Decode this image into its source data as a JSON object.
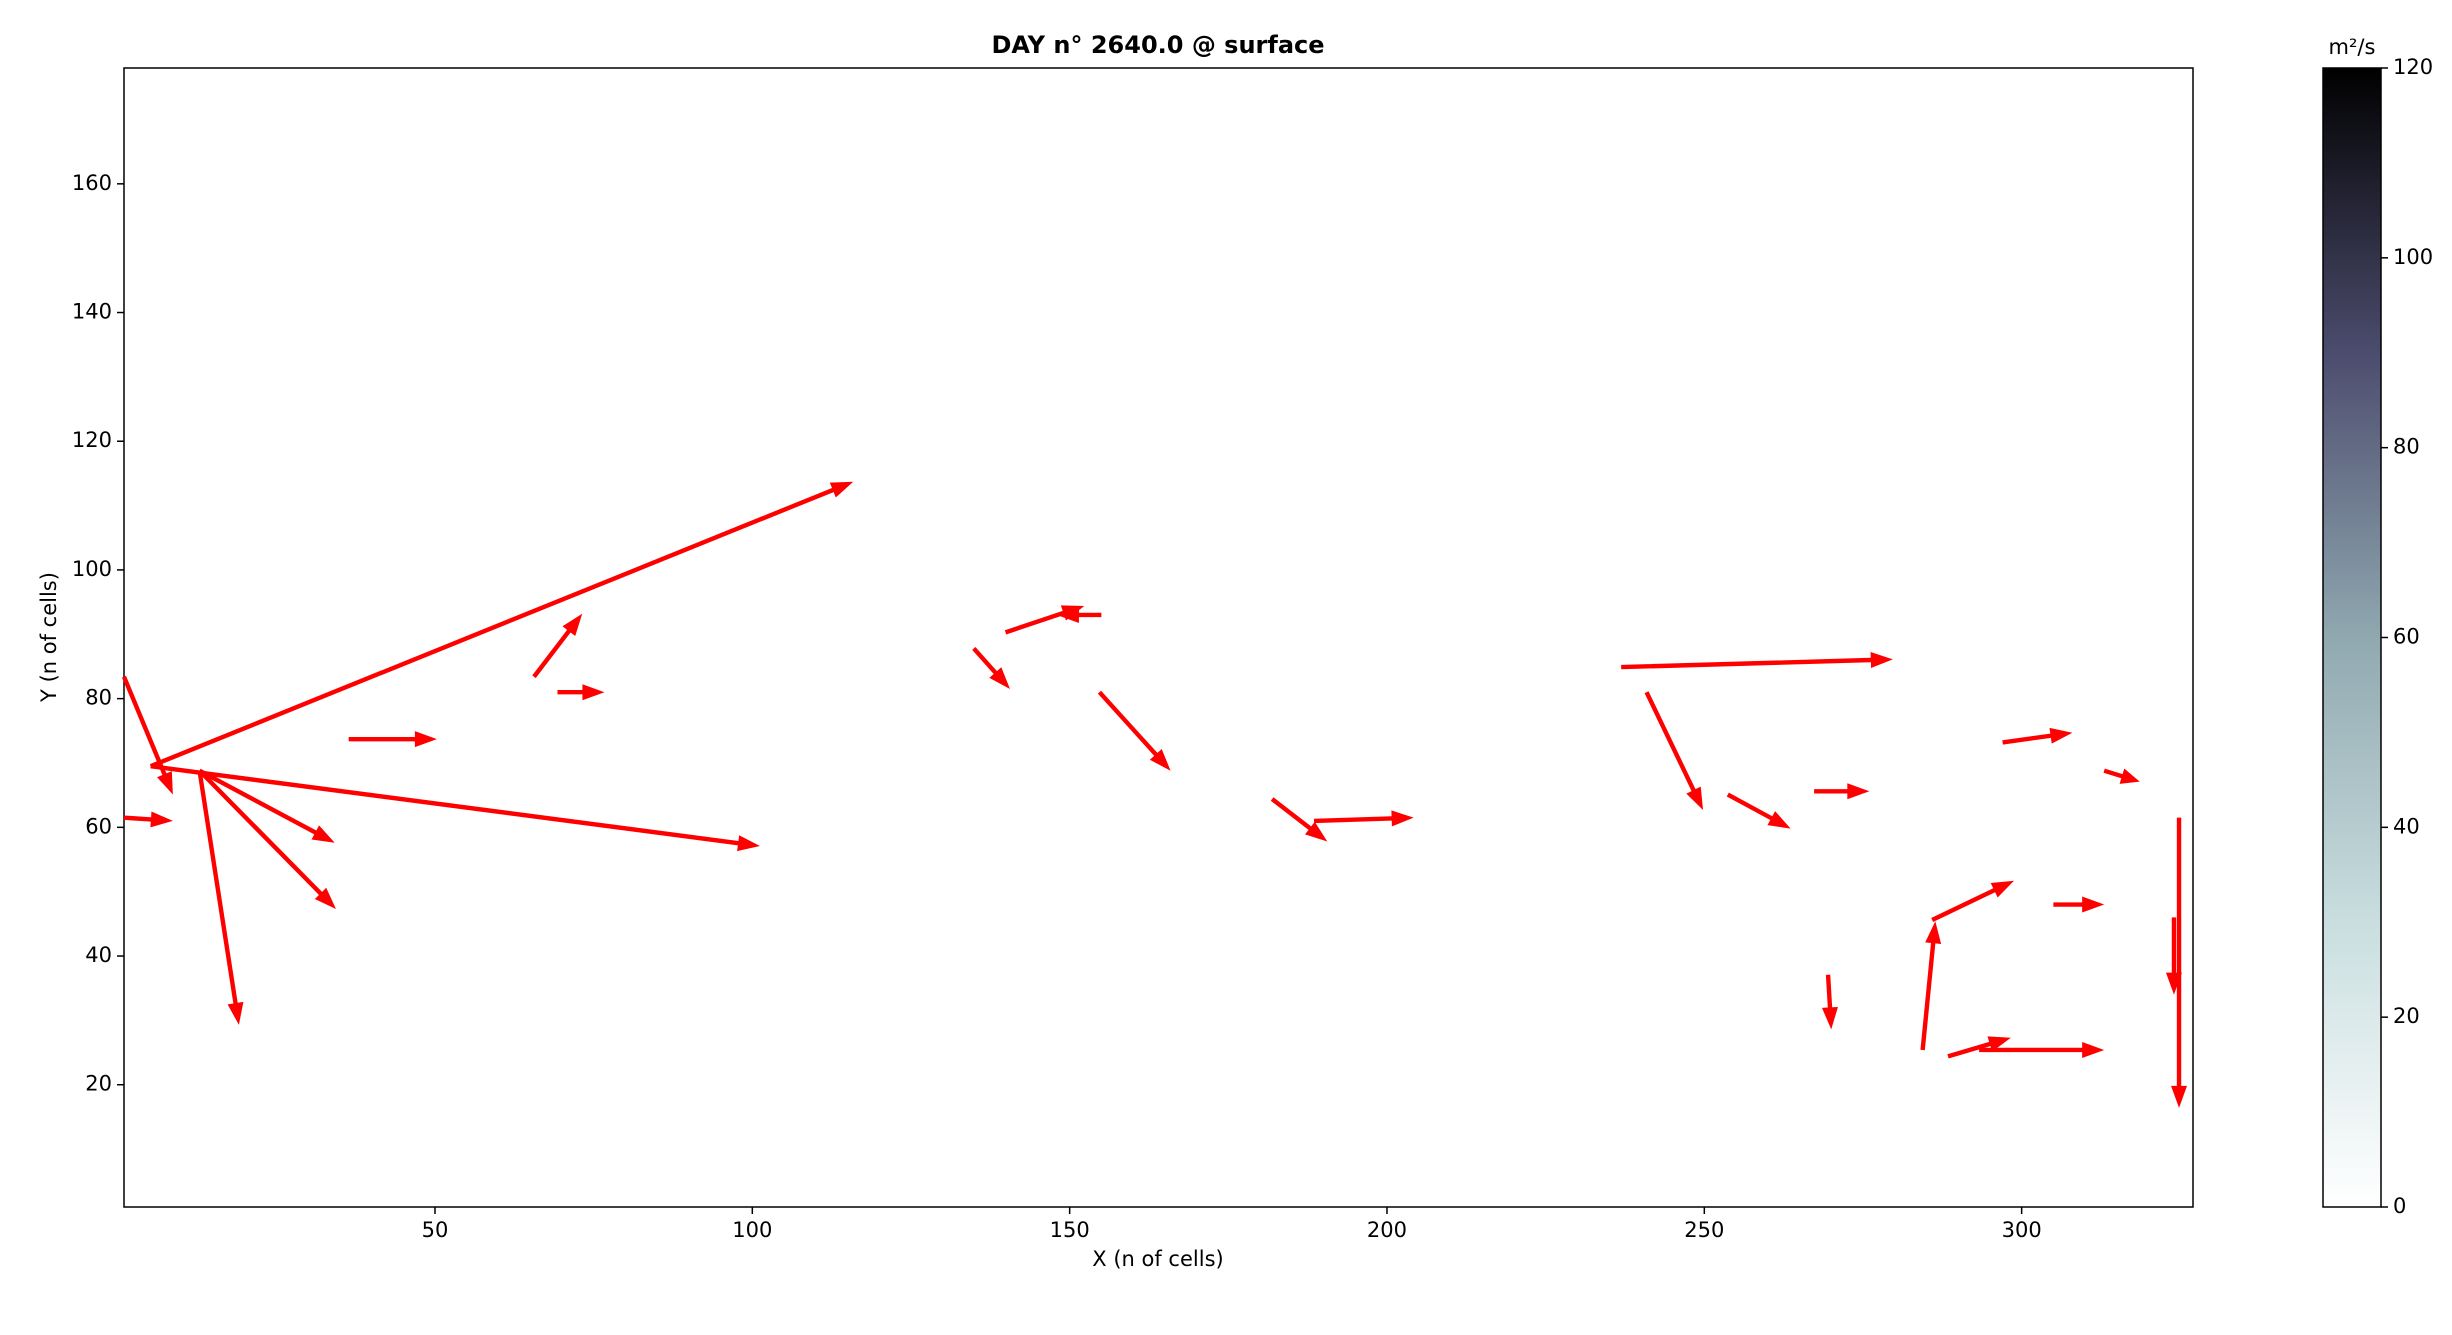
{
  "chart_data": {
    "type": "quiver",
    "title": "DAY n° 2640.0 @ surface",
    "x_label": "X (n of cells)",
    "y_label": "Y (n of cells)",
    "xlim": [
      1,
      327
    ],
    "ylim": [
      1,
      178
    ],
    "xticks": [
      50,
      100,
      150,
      200,
      250,
      300
    ],
    "yticks": [
      20,
      40,
      60,
      80,
      100,
      120,
      140,
      160
    ],
    "color": "#ff0000",
    "colorbar": {
      "label": "m²/s",
      "lim": [
        0,
        120
      ],
      "ticks": [
        0,
        20,
        40,
        60,
        80,
        100,
        120
      ]
    },
    "arrows": {
      "x": [
        5.2,
        5.2,
        12.9,
        12.9,
        12.9,
        236.9,
        1,
        1,
        284.4,
        324.8,
        240.9,
        253.7,
        297,
        313,
        288.4,
        293.3,
        285.9,
        134.9,
        139.9,
        154.7,
        181.9,
        188.5,
        36.4,
        65.6,
        69.3,
        269.5,
        267.3,
        155,
        305,
        324
      ],
      "y": [
        69.5,
        69.5,
        68.8,
        68.8,
        68.8,
        84.9,
        83.4,
        61.5,
        25.4,
        61.5,
        81,
        65.1,
        73.2,
        68.8,
        24.4,
        25.4,
        45.6,
        87.8,
        90.3,
        81,
        64.4,
        61,
        73.7,
        83.4,
        81,
        37.1,
        65.6,
        93,
        48,
        46
      ],
      "u": [
        110.7,
        96,
        6.2,
        21.5,
        21.3,
        42.8,
        7.7,
        7.7,
        2,
        0,
        8.9,
        9.9,
        11,
        5.6,
        9.9,
        19.7,
        12.9,
        5.7,
        12.4,
        11.2,
        8.7,
        15.7,
        13.9,
        7.6,
        7.4,
        0.5,
        8.7,
        -7,
        8,
        0
      ],
      "v": [
        44.2,
        -12.4,
        -39.5,
        -21.5,
        -11.2,
        1.2,
        -18.3,
        -0.5,
        20,
        -45.1,
        -18.3,
        -5.3,
        1.5,
        -1.7,
        2.9,
        0,
        6.1,
        -6.3,
        4.1,
        -12.2,
        -6.6,
        0.5,
        0,
        9.8,
        0,
        -8.5,
        0,
        0,
        0,
        -12
      ]
    }
  }
}
